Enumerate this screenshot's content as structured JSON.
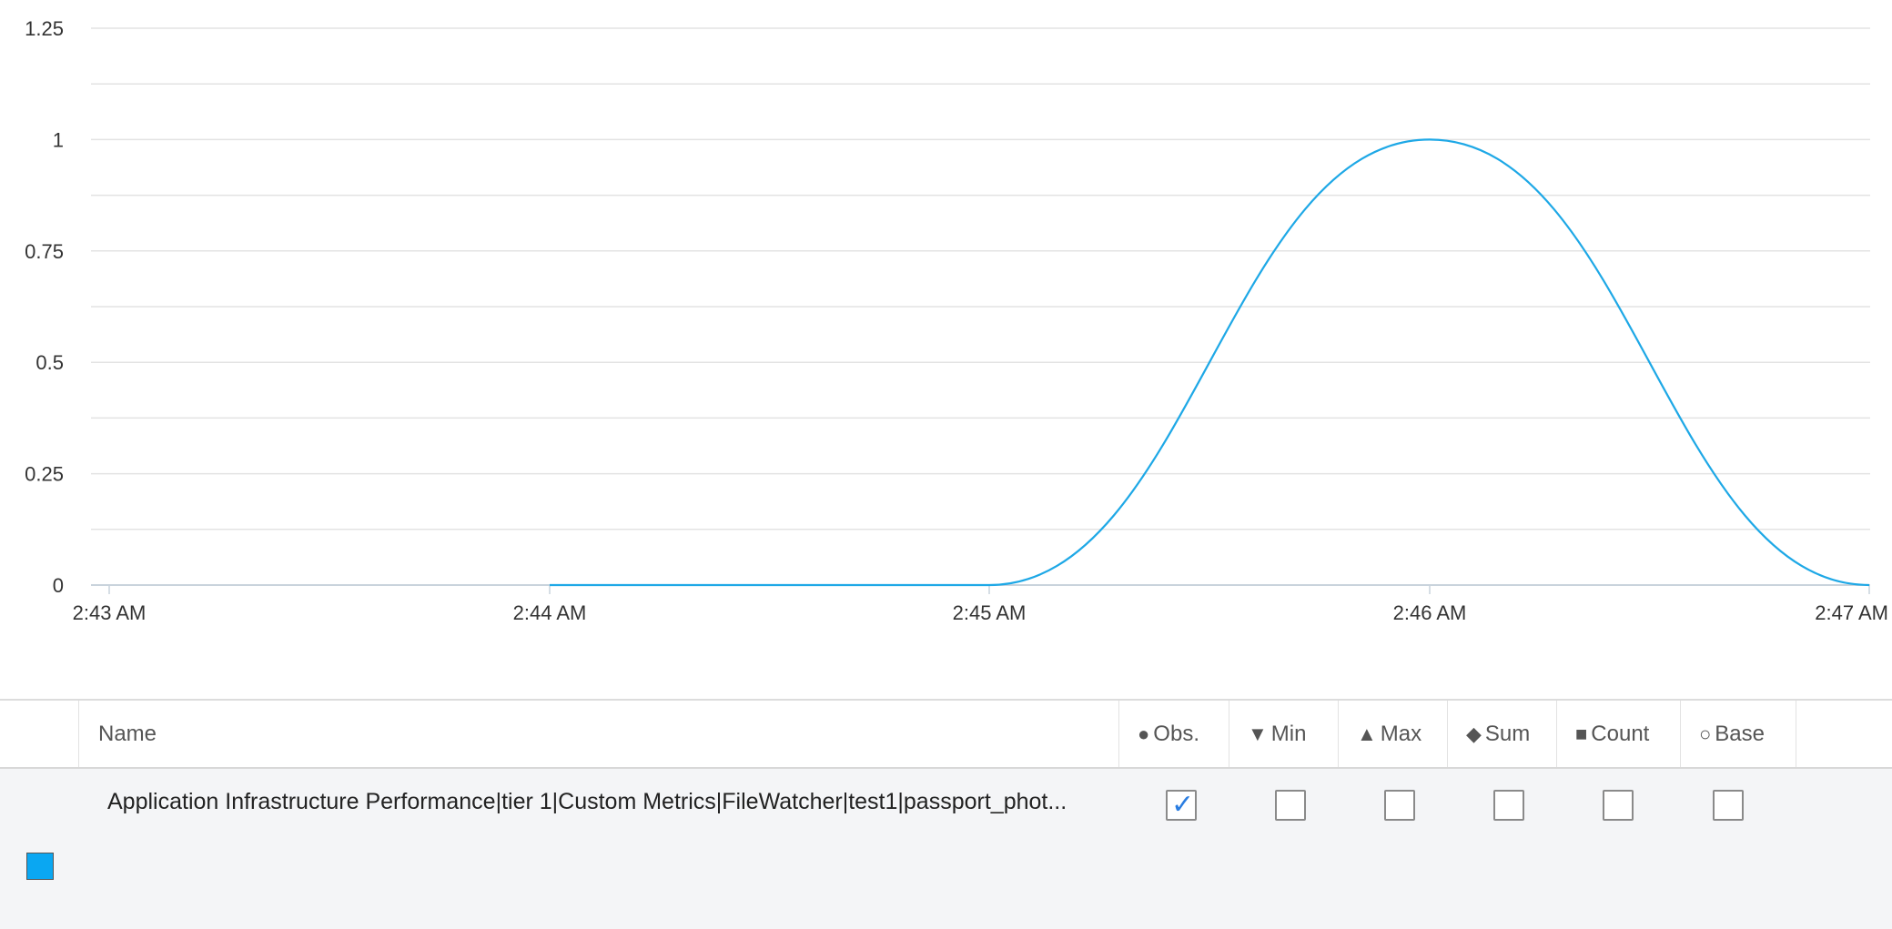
{
  "colors": {
    "series": "#1ea8e6",
    "swatch": "#0aa7f2",
    "grid": "#e3e3e3",
    "checkmark": "#2a7de1"
  },
  "chart_data": {
    "type": "line",
    "x_ticks": [
      "2:43 AM",
      "2:44 AM",
      "2:45 AM",
      "2:46 AM",
      "2:47 AM"
    ],
    "y_ticks": [
      "0",
      "0.25",
      "0.5",
      "0.75",
      "1",
      "1.25"
    ],
    "ylim": [
      0,
      1.25
    ],
    "grid": true,
    "series": [
      {
        "name": "Application Infrastructure Performance|tier 1|Custom Metrics|FileWatcher|test1|passport_phot...",
        "points": [
          {
            "x": "2:44 AM",
            "y": 0
          },
          {
            "x": "2:45 AM",
            "y": 0
          },
          {
            "x": "2:46 AM",
            "y": 1
          },
          {
            "x": "2:47 AM",
            "y": 0
          }
        ]
      }
    ]
  },
  "legend": {
    "header": {
      "name": "Name",
      "obs": "Obs.",
      "min": "Min",
      "max": "Max",
      "sum": "Sum",
      "count": "Count",
      "base": "Base"
    },
    "icons": {
      "obs": "filled-circle-icon",
      "min": "down-triangle-icon",
      "max": "up-triangle-icon",
      "sum": "diamond-icon",
      "count": "square-icon",
      "base": "hollow-circle-icon"
    },
    "row": {
      "name": "Application Infrastructure Performance|tier 1|Custom Metrics|FileWatcher|test1|passport_phot...",
      "obs": true,
      "min": false,
      "max": false,
      "sum": false,
      "count": false,
      "base": false
    }
  }
}
